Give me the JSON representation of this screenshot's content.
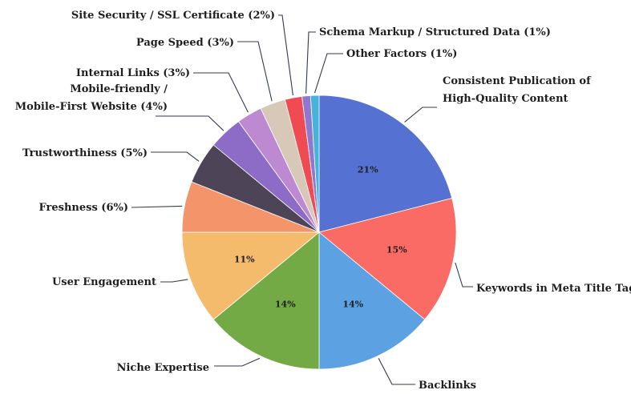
{
  "chart_data": {
    "type": "pie",
    "title": "",
    "slices": [
      {
        "label": "Consistent Publication of High-Quality Content",
        "lines": [
          "Consistent Publication of",
          "High-Quality Content"
        ],
        "value": 21,
        "pct_label": "21%",
        "color": "#5572d3"
      },
      {
        "label": "Keywords in Meta Title Tags",
        "lines": [
          "Keywords in Meta Title Tags"
        ],
        "value": 15,
        "pct_label": "15%",
        "color": "#f96b64"
      },
      {
        "label": "Backlinks",
        "lines": [
          "Backlinks"
        ],
        "value": 14,
        "pct_label": "14%",
        "color": "#5ca2e2"
      },
      {
        "label": "Niche Expertise",
        "lines": [
          "Niche Expertise"
        ],
        "value": 14,
        "pct_label": "14%",
        "color": "#73aa45"
      },
      {
        "label": "User Engagement",
        "lines": [
          "User Engagement"
        ],
        "value": 11,
        "pct_label": "11%",
        "color": "#f4bb6d"
      },
      {
        "label": "Freshness",
        "lines": [
          "Freshness (6%)"
        ],
        "value": 6,
        "pct_label": "",
        "color": "#f3946a"
      },
      {
        "label": "Trustworthiness",
        "lines": [
          "Trustworthiness (5%)"
        ],
        "value": 5,
        "pct_label": "",
        "color": "#4d4458"
      },
      {
        "label": "Mobile-friendly / Mobile-First Website",
        "lines": [
          "Mobile-friendly /",
          "Mobile-First Website (4%)"
        ],
        "value": 4,
        "pct_label": "",
        "color": "#8c6cc6"
      },
      {
        "label": "Internal Links",
        "lines": [
          "Internal Links (3%)"
        ],
        "value": 3,
        "pct_label": "",
        "color": "#bd8ad2"
      },
      {
        "label": "Page Speed",
        "lines": [
          "Page Speed (3%)"
        ],
        "value": 3,
        "pct_label": "",
        "color": "#d7c8b7"
      },
      {
        "label": "Site Security / SSL Certificate",
        "lines": [
          "Site Security / SSL Certificate (2%)"
        ],
        "value": 2,
        "pct_label": "",
        "color": "#ee4b52"
      },
      {
        "label": "Schema Markup / Structured Data",
        "lines": [
          "Schema Markup / Structured Data (1%)"
        ],
        "value": 1,
        "pct_label": "",
        "color": "#8e78d0"
      },
      {
        "label": "Other Factors",
        "lines": [
          "Other Factors (1%)"
        ],
        "value": 1,
        "pct_label": "",
        "color": "#46b3da"
      }
    ],
    "start_angle_deg": 0,
    "direction": "clockwise",
    "legend": "none"
  }
}
